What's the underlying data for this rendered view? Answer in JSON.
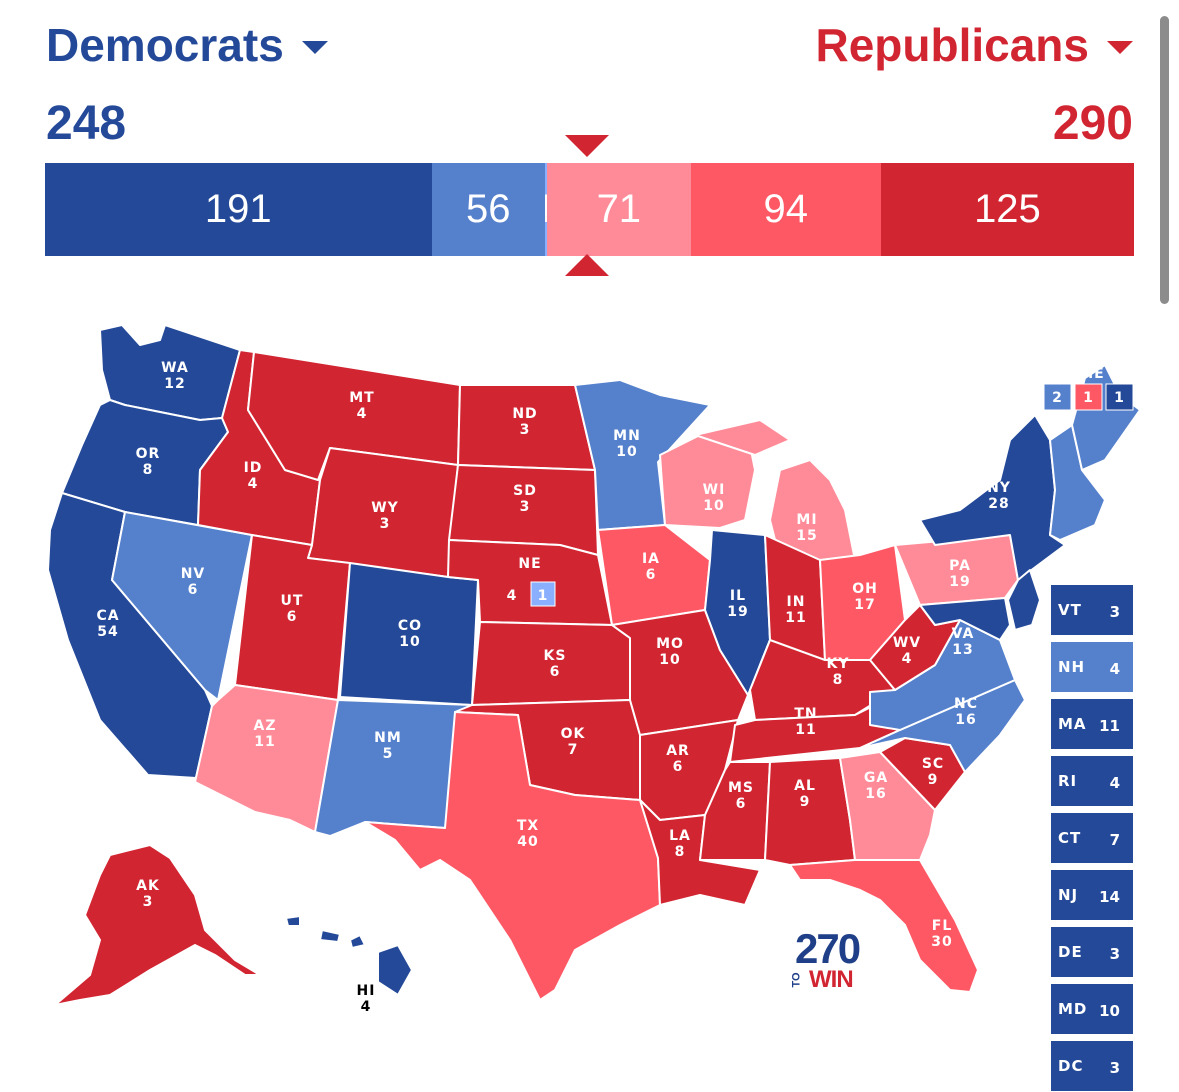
{
  "header": {
    "dem": {
      "label": "Democrats",
      "total": "248",
      "color": "#244999"
    },
    "rep": {
      "label": "Republicans",
      "total": "290",
      "color": "#d22532"
    }
  },
  "bar": {
    "segments": [
      {
        "value": "191",
        "category": "safe-dem",
        "color": "#244999"
      },
      {
        "value": "56",
        "category": "likely-dem",
        "color": "#5580cc"
      },
      {
        "value": "1",
        "category": "lean-dem",
        "color": "#8aafff"
      },
      {
        "value": "71",
        "category": "lean-rep",
        "color": "#ff8b98"
      },
      {
        "value": "94",
        "category": "likely-rep",
        "color": "#ff5865"
      },
      {
        "value": "125",
        "category": "safe-rep",
        "color": "#d22532"
      }
    ],
    "threshold": 270
  },
  "colors": {
    "safe-dem": "#244999",
    "likely-dem": "#5580cc",
    "lean-dem": "#8aafff",
    "lean-rep": "#ff8b98",
    "likely-rep": "#ff5865",
    "safe-rep": "#d22532"
  },
  "states": {
    "WA": {
      "ev": "12",
      "cat": "safe-dem"
    },
    "OR": {
      "ev": "8",
      "cat": "safe-dem"
    },
    "CA": {
      "ev": "54",
      "cat": "safe-dem"
    },
    "NV": {
      "ev": "6",
      "cat": "likely-dem"
    },
    "ID": {
      "ev": "4",
      "cat": "safe-rep"
    },
    "MT": {
      "ev": "4",
      "cat": "safe-rep"
    },
    "WY": {
      "ev": "3",
      "cat": "safe-rep"
    },
    "UT": {
      "ev": "6",
      "cat": "safe-rep"
    },
    "AZ": {
      "ev": "11",
      "cat": "lean-rep"
    },
    "CO": {
      "ev": "10",
      "cat": "safe-dem"
    },
    "NM": {
      "ev": "5",
      "cat": "likely-dem"
    },
    "ND": {
      "ev": "3",
      "cat": "safe-rep"
    },
    "SD": {
      "ev": "3",
      "cat": "safe-rep"
    },
    "NE": {
      "ev": "4",
      "cat": "safe-rep",
      "district_ev": "1",
      "district_cat": "lean-dem"
    },
    "KS": {
      "ev": "6",
      "cat": "safe-rep"
    },
    "OK": {
      "ev": "7",
      "cat": "safe-rep"
    },
    "TX": {
      "ev": "40",
      "cat": "likely-rep"
    },
    "MN": {
      "ev": "10",
      "cat": "likely-dem"
    },
    "IA": {
      "ev": "6",
      "cat": "likely-rep"
    },
    "MO": {
      "ev": "10",
      "cat": "safe-rep"
    },
    "AR": {
      "ev": "6",
      "cat": "safe-rep"
    },
    "LA": {
      "ev": "8",
      "cat": "safe-rep"
    },
    "WI": {
      "ev": "10",
      "cat": "lean-rep"
    },
    "IL": {
      "ev": "19",
      "cat": "safe-dem"
    },
    "MI": {
      "ev": "15",
      "cat": "lean-rep"
    },
    "IN": {
      "ev": "11",
      "cat": "safe-rep"
    },
    "OH": {
      "ev": "17",
      "cat": "likely-rep"
    },
    "KY": {
      "ev": "8",
      "cat": "safe-rep"
    },
    "TN": {
      "ev": "11",
      "cat": "safe-rep"
    },
    "MS": {
      "ev": "6",
      "cat": "safe-rep"
    },
    "AL": {
      "ev": "9",
      "cat": "safe-rep"
    },
    "GA": {
      "ev": "16",
      "cat": "lean-rep"
    },
    "FL": {
      "ev": "30",
      "cat": "likely-rep"
    },
    "SC": {
      "ev": "9",
      "cat": "safe-rep"
    },
    "NC": {
      "ev": "16",
      "cat": "likely-dem"
    },
    "VA": {
      "ev": "13",
      "cat": "likely-dem"
    },
    "WV": {
      "ev": "4",
      "cat": "safe-rep"
    },
    "PA": {
      "ev": "19",
      "cat": "lean-rep"
    },
    "NY": {
      "ev": "28",
      "cat": "safe-dem"
    },
    "ME": {
      "label": "ME",
      "cat": "likely-dem",
      "splits": [
        {
          "ev": "2",
          "cat": "likely-dem"
        },
        {
          "ev": "1",
          "cat": "likely-rep"
        },
        {
          "ev": "1",
          "cat": "safe-dem"
        }
      ]
    },
    "AK": {
      "ev": "3",
      "cat": "safe-rep"
    },
    "HI": {
      "ev": "4",
      "cat": "safe-dem"
    }
  },
  "small_states": [
    {
      "abbr": "VT",
      "ev": "3",
      "cat": "safe-dem"
    },
    {
      "abbr": "NH",
      "ev": "4",
      "cat": "likely-dem"
    },
    {
      "abbr": "MA",
      "ev": "11",
      "cat": "safe-dem"
    },
    {
      "abbr": "RI",
      "ev": "4",
      "cat": "safe-dem"
    },
    {
      "abbr": "CT",
      "ev": "7",
      "cat": "safe-dem"
    },
    {
      "abbr": "NJ",
      "ev": "14",
      "cat": "safe-dem"
    },
    {
      "abbr": "DE",
      "ev": "3",
      "cat": "safe-dem"
    },
    {
      "abbr": "MD",
      "ev": "10",
      "cat": "safe-dem"
    },
    {
      "abbr": "DC",
      "ev": "3",
      "cat": "safe-dem"
    }
  ],
  "logo": {
    "number": "270",
    "to": "TO",
    "win": "WIN"
  }
}
